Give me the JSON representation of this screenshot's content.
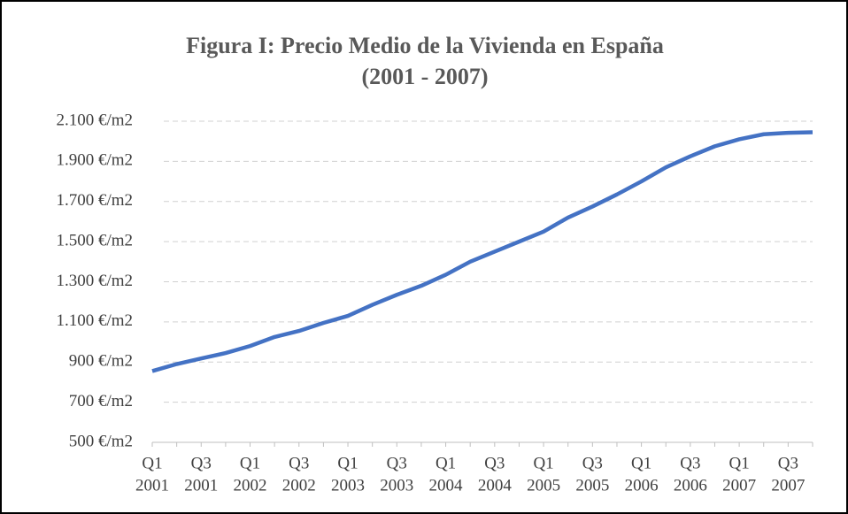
{
  "chart_data": {
    "type": "line",
    "title": [
      "Figura I: Precio Medio de la Vivienda en España",
      "(2001 - 2007)"
    ],
    "categories": [
      [
        "Q1",
        "2001"
      ],
      null,
      [
        "Q3",
        "2001"
      ],
      null,
      [
        "Q1",
        "2002"
      ],
      null,
      [
        "Q3",
        "2002"
      ],
      null,
      [
        "Q1",
        "2003"
      ],
      null,
      [
        "Q3",
        "2003"
      ],
      null,
      [
        "Q1",
        "2004"
      ],
      null,
      [
        "Q3",
        "2004"
      ],
      null,
      [
        "Q1",
        "2005"
      ],
      null,
      [
        "Q3",
        "2005"
      ],
      null,
      [
        "Q1",
        "2006"
      ],
      null,
      [
        "Q3",
        "2006"
      ],
      null,
      [
        "Q1",
        "2007"
      ],
      null,
      [
        "Q3",
        "2007"
      ],
      null
    ],
    "series": [
      {
        "color": "#4472c4",
        "values": [
          855,
          890,
          918,
          945,
          980,
          1025,
          1055,
          1095,
          1130,
          1185,
          1235,
          1280,
          1335,
          1400,
          1450,
          1500,
          1550,
          1620,
          1675,
          1735,
          1800,
          1870,
          1925,
          1975,
          2010,
          2035,
          2042,
          2045
        ]
      }
    ],
    "ylim": [
      500,
      2100
    ],
    "yticks": [
      {
        "value": 500,
        "label": "500 €/m2"
      },
      {
        "value": 700,
        "label": "700 €/m2"
      },
      {
        "value": 900,
        "label": "900 €/m2"
      },
      {
        "value": 1100,
        "label": "1.100 €/m2"
      },
      {
        "value": 1300,
        "label": "1.300 €/m2"
      },
      {
        "value": 1500,
        "label": "1.500 €/m2"
      },
      {
        "value": 1700,
        "label": "1.700 €/m2"
      },
      {
        "value": 1900,
        "label": "1.900 €/m2"
      },
      {
        "value": 2100,
        "label": "2.100 €/m2"
      }
    ],
    "grid": true
  }
}
